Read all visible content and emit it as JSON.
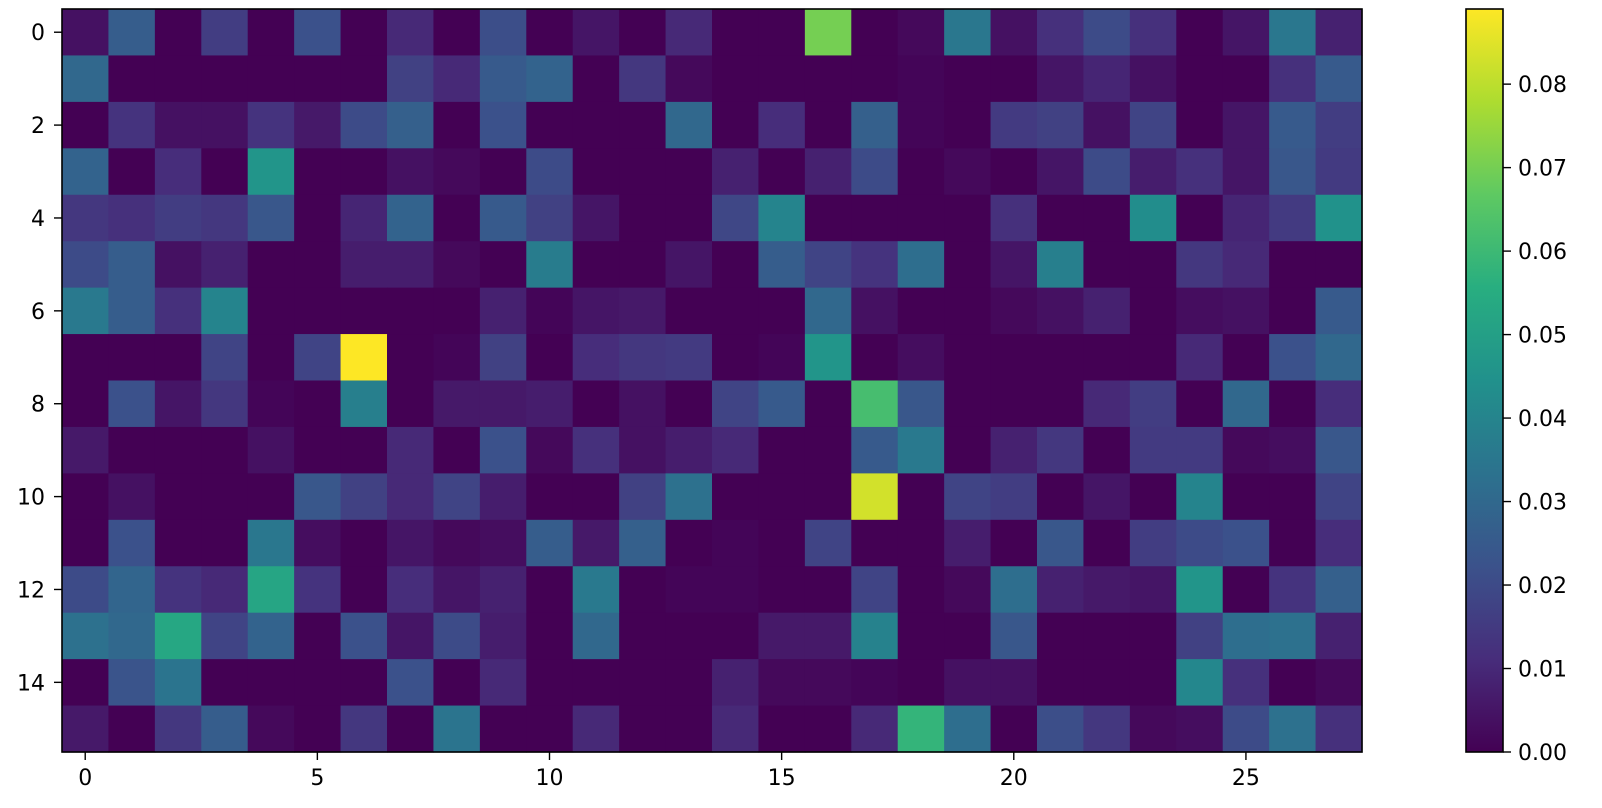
{
  "chart_data": {
    "type": "heatmap",
    "title": "",
    "xlabel": "",
    "ylabel": "",
    "rows": 16,
    "cols": 28,
    "x_ticks": [
      0,
      5,
      10,
      15,
      20,
      25
    ],
    "y_ticks": [
      0,
      2,
      4,
      6,
      8,
      10,
      12,
      14
    ],
    "x_tick_labels": [
      "0",
      "5",
      "10",
      "15",
      "20",
      "25"
    ],
    "y_tick_labels": [
      "0",
      "2",
      "4",
      "6",
      "8",
      "10",
      "12",
      "14"
    ],
    "colorbar": {
      "range": [
        0.0,
        0.089
      ],
      "ticks": [
        0.0,
        0.01,
        0.02,
        0.03,
        0.04,
        0.05,
        0.06,
        0.07,
        0.08
      ],
      "tick_labels": [
        "0.00",
        "0.01",
        "0.02",
        "0.03",
        "0.04",
        "0.05",
        "0.06",
        "0.07",
        "0.08"
      ]
    },
    "colormap": "viridis",
    "values": [
      [
        0.004,
        0.026,
        0.0,
        0.016,
        0.0,
        0.022,
        0.0,
        0.01,
        0.0,
        0.021,
        0.0,
        0.005,
        0.0,
        0.01,
        0.0,
        0.0,
        0.07,
        0.0,
        0.002,
        0.035,
        0.004,
        0.012,
        0.02,
        0.012,
        0.0,
        0.005,
        0.035,
        0.008
      ],
      [
        0.03,
        0.0,
        0.0,
        0.0,
        0.0,
        0.0,
        0.0,
        0.017,
        0.01,
        0.025,
        0.028,
        0.0,
        0.014,
        0.002,
        0.0,
        0.0,
        0.0,
        0.0,
        0.001,
        0.0,
        0.0,
        0.005,
        0.009,
        0.004,
        0.0,
        0.0,
        0.012,
        0.025
      ],
      [
        0.0,
        0.013,
        0.004,
        0.004,
        0.013,
        0.006,
        0.02,
        0.027,
        0.0,
        0.022,
        0.0,
        0.0,
        0.0,
        0.03,
        0.0,
        0.011,
        0.0,
        0.027,
        0.001,
        0.0,
        0.015,
        0.017,
        0.004,
        0.018,
        0.0,
        0.005,
        0.025,
        0.016
      ],
      [
        0.028,
        0.0,
        0.011,
        0.0,
        0.046,
        0.0,
        0.0,
        0.004,
        0.002,
        0.0,
        0.02,
        0.0,
        0.0,
        0.0,
        0.008,
        0.0,
        0.008,
        0.02,
        0.0,
        0.002,
        0.0,
        0.005,
        0.02,
        0.007,
        0.012,
        0.005,
        0.024,
        0.015
      ],
      [
        0.014,
        0.012,
        0.016,
        0.014,
        0.024,
        0.0,
        0.009,
        0.028,
        0.0,
        0.025,
        0.017,
        0.005,
        0.0,
        0.0,
        0.019,
        0.04,
        0.0,
        0.0,
        0.0,
        0.0,
        0.012,
        0.0,
        0.0,
        0.043,
        0.0,
        0.009,
        0.015,
        0.045
      ],
      [
        0.02,
        0.026,
        0.004,
        0.008,
        0.0,
        0.0,
        0.007,
        0.007,
        0.002,
        0.0,
        0.037,
        0.0,
        0.0,
        0.005,
        0.0,
        0.026,
        0.018,
        0.013,
        0.032,
        0.0,
        0.005,
        0.038,
        0.0,
        0.0,
        0.014,
        0.01,
        0.0,
        0.0
      ],
      [
        0.036,
        0.026,
        0.012,
        0.04,
        0.0,
        0.0,
        0.0,
        0.0,
        0.0,
        0.008,
        0.001,
        0.005,
        0.006,
        0.0,
        0.0,
        0.0,
        0.03,
        0.004,
        0.0,
        0.0,
        0.002,
        0.004,
        0.008,
        0.0,
        0.003,
        0.004,
        0.0,
        0.025
      ],
      [
        0.0,
        0.0,
        0.0,
        0.018,
        0.0,
        0.018,
        0.089,
        0.0,
        0.001,
        0.017,
        0.0,
        0.011,
        0.014,
        0.015,
        0.0,
        0.001,
        0.046,
        0.0,
        0.003,
        0.0,
        0.0,
        0.0,
        0.0,
        0.0,
        0.01,
        0.0,
        0.022,
        0.03
      ],
      [
        0.0,
        0.022,
        0.005,
        0.014,
        0.001,
        0.0,
        0.038,
        0.0,
        0.006,
        0.006,
        0.007,
        0.0,
        0.004,
        0.0,
        0.018,
        0.025,
        0.0,
        0.062,
        0.024,
        0.0,
        0.0,
        0.0,
        0.01,
        0.016,
        0.0,
        0.03,
        0.0,
        0.011
      ],
      [
        0.006,
        0.0,
        0.0,
        0.0,
        0.004,
        0.0,
        0.0,
        0.01,
        0.0,
        0.022,
        0.002,
        0.012,
        0.004,
        0.007,
        0.01,
        0.0,
        0.0,
        0.025,
        0.036,
        0.0,
        0.008,
        0.014,
        0.0,
        0.015,
        0.015,
        0.002,
        0.003,
        0.024
      ],
      [
        0.0,
        0.004,
        0.0,
        0.0,
        0.0,
        0.024,
        0.017,
        0.01,
        0.018,
        0.007,
        0.0,
        0.0,
        0.017,
        0.033,
        0.0,
        0.0,
        0.0,
        0.083,
        0.0,
        0.018,
        0.016,
        0.0,
        0.005,
        0.0,
        0.04,
        0.0,
        0.0,
        0.018
      ],
      [
        0.0,
        0.022,
        0.0,
        0.0,
        0.035,
        0.003,
        0.0,
        0.005,
        0.002,
        0.003,
        0.026,
        0.006,
        0.027,
        0.0,
        0.001,
        0.0,
        0.018,
        0.0,
        0.0,
        0.007,
        0.0,
        0.024,
        0.0,
        0.016,
        0.02,
        0.022,
        0.0,
        0.011
      ],
      [
        0.02,
        0.029,
        0.013,
        0.01,
        0.052,
        0.013,
        0.0,
        0.011,
        0.005,
        0.008,
        0.0,
        0.036,
        0.0,
        0.001,
        0.001,
        0.0,
        0.0,
        0.018,
        0.0,
        0.002,
        0.032,
        0.008,
        0.006,
        0.005,
        0.046,
        0.0,
        0.013,
        0.027
      ],
      [
        0.033,
        0.03,
        0.053,
        0.018,
        0.028,
        0.0,
        0.022,
        0.005,
        0.02,
        0.007,
        0.0,
        0.03,
        0.0,
        0.0,
        0.0,
        0.006,
        0.006,
        0.039,
        0.0,
        0.0,
        0.024,
        0.0,
        0.0,
        0.0,
        0.017,
        0.032,
        0.033,
        0.008
      ],
      [
        0.0,
        0.023,
        0.034,
        0.0,
        0.0,
        0.0,
        0.0,
        0.022,
        0.0,
        0.01,
        0.0,
        0.0,
        0.0,
        0.0,
        0.008,
        0.002,
        0.002,
        0.001,
        0.0,
        0.004,
        0.004,
        0.0,
        0.0,
        0.0,
        0.041,
        0.012,
        0.0,
        0.002
      ],
      [
        0.006,
        0.0,
        0.014,
        0.026,
        0.002,
        0.0,
        0.014,
        0.0,
        0.034,
        0.0,
        0.0,
        0.01,
        0.0,
        0.0,
        0.01,
        0.0,
        0.0,
        0.01,
        0.058,
        0.032,
        0.0,
        0.021,
        0.014,
        0.002,
        0.003,
        0.02,
        0.033,
        0.012
      ]
    ]
  }
}
